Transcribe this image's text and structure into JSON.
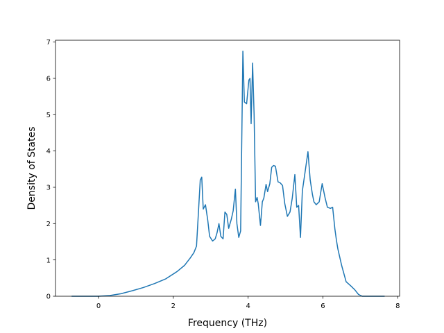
{
  "chart_data": {
    "type": "line",
    "title": "",
    "xlabel": "Frequency (THz)",
    "ylabel": "Density of States",
    "xlim": [
      -1.15,
      8.05
    ],
    "ylim": [
      0,
      7.05
    ],
    "xticks": [
      0,
      2,
      4,
      6,
      8
    ],
    "yticks": [
      0,
      1,
      2,
      3,
      4,
      5,
      6,
      7
    ],
    "grid": false,
    "legend": "none",
    "series": [
      {
        "color": "#1f77b4",
        "x": [
          -0.72,
          -0.3,
          0.0,
          0.3,
          0.6,
          0.9,
          1.2,
          1.5,
          1.8,
          2.1,
          2.3,
          2.45,
          2.55,
          2.62,
          2.66,
          2.72,
          2.76,
          2.8,
          2.86,
          2.92,
          2.97,
          3.05,
          3.12,
          3.17,
          3.22,
          3.27,
          3.33,
          3.38,
          3.43,
          3.48,
          3.55,
          3.6,
          3.66,
          3.7,
          3.75,
          3.8,
          3.86,
          3.9,
          3.96,
          4.02,
          4.05,
          4.08,
          4.12,
          4.16,
          4.2,
          4.24,
          4.27,
          4.33,
          4.38,
          4.42,
          4.48,
          4.52,
          4.58,
          4.63,
          4.68,
          4.73,
          4.8,
          4.86,
          4.92,
          4.98,
          5.05,
          5.12,
          5.18,
          5.25,
          5.3,
          5.35,
          5.4,
          5.45,
          5.52,
          5.6,
          5.66,
          5.72,
          5.76,
          5.82,
          5.9,
          5.98,
          6.06,
          6.12,
          6.2,
          6.26,
          6.32,
          6.36,
          6.4,
          6.5,
          6.62,
          6.75,
          6.85,
          6.95,
          7.05,
          7.2,
          7.4,
          7.65
        ],
        "y": [
          0.0,
          0.0,
          0.0,
          0.02,
          0.07,
          0.15,
          0.24,
          0.35,
          0.48,
          0.68,
          0.85,
          1.05,
          1.2,
          1.38,
          2.1,
          3.2,
          3.28,
          2.4,
          2.52,
          2.1,
          1.65,
          1.52,
          1.58,
          1.75,
          2.0,
          1.65,
          1.58,
          2.32,
          2.25,
          1.87,
          2.12,
          2.35,
          2.95,
          2.0,
          1.62,
          1.8,
          6.75,
          5.35,
          5.3,
          5.95,
          6.0,
          4.75,
          6.42,
          5.0,
          2.6,
          2.72,
          2.55,
          1.95,
          2.6,
          2.7,
          3.08,
          2.88,
          3.1,
          3.55,
          3.6,
          3.58,
          3.15,
          3.12,
          3.05,
          2.55,
          2.2,
          2.32,
          2.7,
          3.35,
          2.45,
          2.5,
          1.62,
          2.9,
          3.4,
          3.98,
          3.2,
          2.8,
          2.6,
          2.52,
          2.6,
          3.1,
          2.7,
          2.45,
          2.42,
          2.45,
          1.85,
          1.55,
          1.3,
          0.85,
          0.4,
          0.28,
          0.18,
          0.05,
          0.0,
          0.0,
          0.0,
          0.0
        ]
      }
    ]
  }
}
